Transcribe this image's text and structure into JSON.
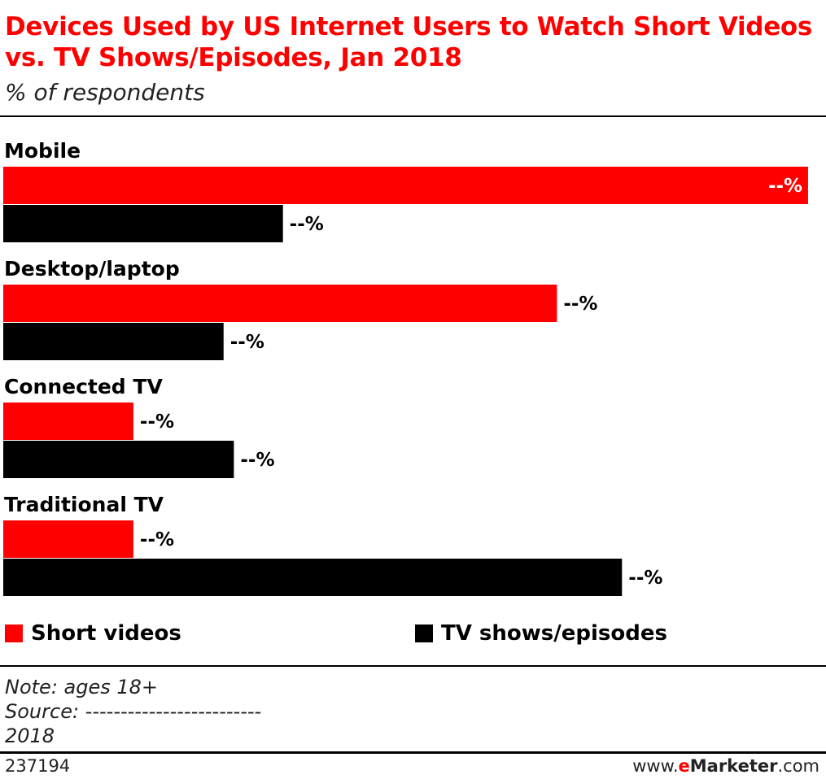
{
  "header": {
    "title": "Devices Used by US Internet Users to Watch Short Videos vs. TV Shows/Episodes, Jan 2018",
    "subtitle": "% of respondents"
  },
  "legend": {
    "items": [
      {
        "label": "Short videos",
        "color": "#ff0000"
      },
      {
        "label": "TV shows/episodes",
        "color": "#000000"
      }
    ]
  },
  "notes": {
    "note": "Note: ages 18+",
    "source": "Source: -------------------------",
    "year": "2018"
  },
  "footer": {
    "chart_id": "237194",
    "brand_prefix": "www.",
    "brand_e": "e",
    "brand_name": "Marketer",
    "brand_suffix": ".com"
  },
  "colors": {
    "accent": "#ff0000",
    "series_a": "#ff0000",
    "series_b": "#000000"
  },
  "chart_data": {
    "type": "bar",
    "orientation": "horizontal",
    "title": "Devices Used by US Internet Users to Watch Short Videos vs. TV Shows/Episodes, Jan 2018",
    "subtitle": "% of respondents",
    "categories": [
      "Mobile",
      "Desktop/laptop",
      "Connected TV",
      "Traditional TV"
    ],
    "series": [
      {
        "name": "Short videos",
        "color": "#ff0000",
        "values": [
          70.5,
          48.5,
          11.4,
          11.4
        ],
        "labels": [
          "--%",
          "--%",
          "--%",
          "--%"
        ]
      },
      {
        "name": "TV shows/episodes",
        "color": "#000000",
        "values": [
          24.5,
          19.3,
          20.2,
          54.2
        ],
        "labels": [
          "--%",
          "--%",
          "--%",
          "--%"
        ]
      }
    ],
    "xlim": [
      0,
      72
    ],
    "grid": false,
    "legend_position": "bottom"
  }
}
